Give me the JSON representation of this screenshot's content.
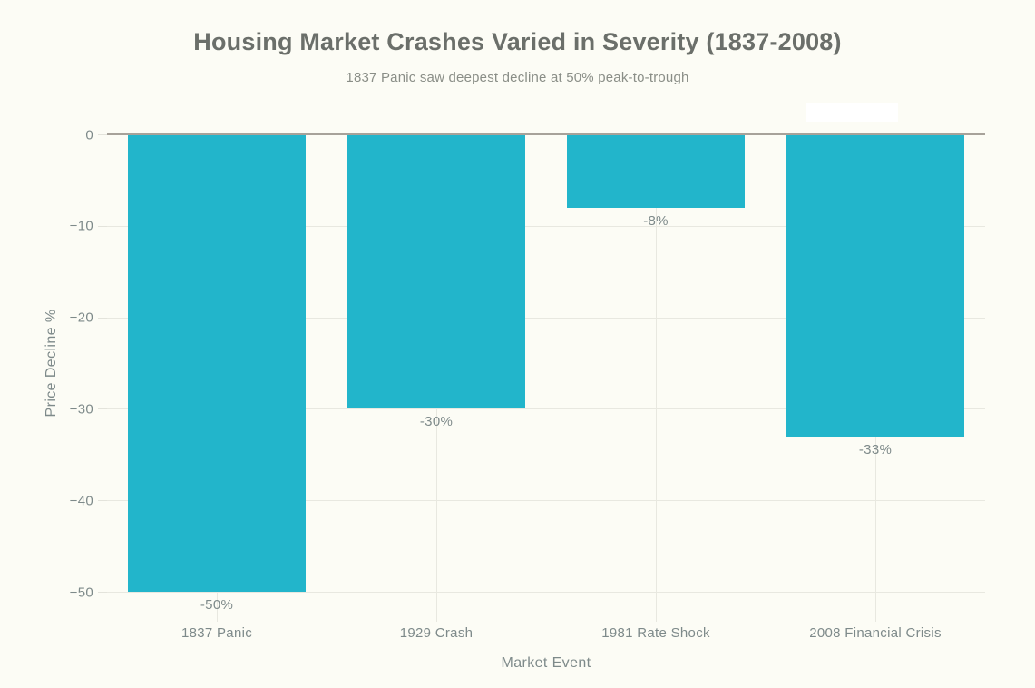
{
  "figure": {
    "background_color": "#fcfcf5"
  },
  "chart_data": {
    "type": "bar",
    "title": "Housing Market Crashes Varied in Severity (1837-2008)",
    "subtitle": "1837 Panic saw deepest decline at 50% peak-to-trough",
    "xlabel": "Market Event",
    "ylabel": "Price Decline %",
    "categories": [
      "1837 Panic",
      "1929 Crash",
      "1981 Rate Shock",
      "2008 Financial Crisis"
    ],
    "values": [
      -50,
      -30,
      -8,
      -33
    ],
    "bar_labels": [
      "-50%",
      "-30%",
      "-8%",
      "-33%"
    ],
    "ylim": [
      -50,
      0
    ],
    "yticks": [
      0,
      -10,
      -20,
      -30,
      -40,
      -50
    ],
    "ytick_labels": [
      "0",
      "−10",
      "−20",
      "−30",
      "−40",
      "−50"
    ],
    "grid": true,
    "legend_position": "none",
    "colors": {
      "bar": "#22b5cb",
      "background": "#fcfcf5",
      "zero_line": "#a7a29a",
      "gridline": "#e8e8e0",
      "title_text": "#6b6f6a",
      "subtitle_text": "#8a8e87",
      "axis_text": "#7e8a8a",
      "legend_box": "#ffffff"
    }
  }
}
